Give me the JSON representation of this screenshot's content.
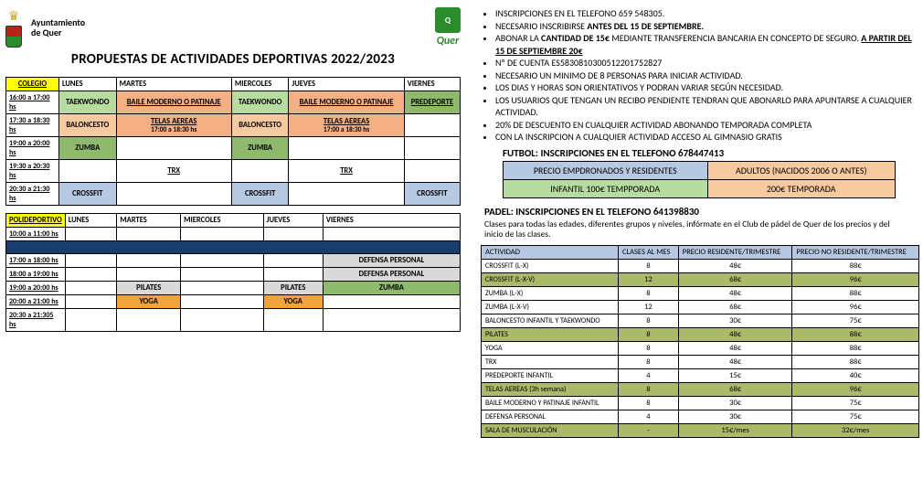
{
  "header": {
    "ayto1": "Ayuntamiento",
    "ayto2": "de Quer",
    "brand": "Quer",
    "title": "PROPUESTAS DE ACTIVIDADES DEPORTIVAS 2022/2023"
  },
  "colors": {
    "yellow": "#ffff00",
    "lgreen": "#b7dca0",
    "dgreen": "#8fb96d",
    "salmon": "#f2b084",
    "lblue": "#b7c9e2",
    "peach": "#f7c99e",
    "grey": "#d9d9d9",
    "orange": "#f2a43a",
    "navy": "#1a3d6b",
    "priceBlue": "#b7c9e2",
    "olive": "#aab96a"
  },
  "days": [
    "LUNES",
    "MARTES",
    "MIERCOLES",
    "JUEVES",
    "VIERNES"
  ],
  "sched1": {
    "label": "COLEGIO",
    "rows": [
      {
        "time": "16:00 a 17:00 hs",
        "cells": [
          {
            "t": "TAEKWONDO",
            "c": "#b7dca0"
          },
          {
            "t": "BAILE MODERNO O PATINAJE",
            "c": "#f2b084",
            "u": true
          },
          {
            "t": "TAEKWONDO",
            "c": "#b7dca0"
          },
          {
            "t": "BAILE MODERNO O PATINAJE",
            "c": "#f2b084",
            "u": true
          },
          {
            "t": "PREDEPORTE",
            "c": "#8fb96d",
            "u": true
          }
        ]
      },
      {
        "time": "17:30 a 18:30 hs",
        "cells": [
          {
            "t": "BALONCESTO",
            "c": "#f7c99e"
          },
          {
            "t": "TELAS AEREAS",
            "sub": "17:00 a 18:30 hs",
            "c": "#f2b084",
            "u": true
          },
          {
            "t": "BALONCESTO",
            "c": "#f7c99e"
          },
          {
            "t": "TELAS AEREAS",
            "sub": "17:00 a 18:30 hs",
            "c": "#f2b084",
            "u": true
          },
          {
            "t": "",
            "c": "#ffffff"
          }
        ]
      },
      {
        "time": "19:00 a 20:00 hs",
        "cells": [
          {
            "t": "ZUMBA",
            "c": "#8fb96d"
          },
          {
            "t": "",
            "c": "#ffffff"
          },
          {
            "t": "ZUMBA",
            "c": "#8fb96d"
          },
          {
            "t": "",
            "c": "#ffffff"
          },
          {
            "t": "",
            "c": "#ffffff"
          }
        ]
      },
      {
        "time": "19:30 a 20:30 hs",
        "cells": [
          {
            "t": "",
            "c": "#ffffff"
          },
          {
            "t": "TRX",
            "c": "#ffffff",
            "u": true
          },
          {
            "t": "",
            "c": "#ffffff"
          },
          {
            "t": "TRX",
            "c": "#ffffff",
            "u": true
          },
          {
            "t": "",
            "c": "#ffffff"
          }
        ]
      },
      {
        "time": "20:30 a 21:30 hs",
        "cells": [
          {
            "t": "CROSSFIT",
            "c": "#b7c9e2"
          },
          {
            "t": "",
            "c": "#ffffff"
          },
          {
            "t": "CROSSFIT",
            "c": "#b7c9e2"
          },
          {
            "t": "",
            "c": "#ffffff"
          },
          {
            "t": "CROSSFIT",
            "c": "#b7c9e2"
          }
        ]
      }
    ]
  },
  "sched2": {
    "label": "POLIDEPORTIVO",
    "rows": [
      {
        "time": "10:00 a 11:00 hs",
        "cells": [
          {
            "t": ""
          },
          {
            "t": ""
          },
          {
            "t": ""
          },
          {
            "t": ""
          },
          {
            "t": ""
          }
        ]
      },
      {
        "time": "",
        "navy": true,
        "cells": [
          {
            "t": ""
          },
          {
            "t": ""
          },
          {
            "t": ""
          },
          {
            "t": ""
          },
          {
            "t": ""
          }
        ]
      },
      {
        "time": "17:00 a 18:00 hs",
        "cells": [
          {
            "t": ""
          },
          {
            "t": ""
          },
          {
            "t": ""
          },
          {
            "t": ""
          },
          {
            "t": "DEFENSA PERSONAL",
            "c": "#d9d9d9"
          }
        ]
      },
      {
        "time": "18:00 a 19:00 hs",
        "cells": [
          {
            "t": ""
          },
          {
            "t": ""
          },
          {
            "t": ""
          },
          {
            "t": ""
          },
          {
            "t": "DEFENSA PERSONAL",
            "c": "#d9d9d9"
          }
        ]
      },
      {
        "time": "19:00 a 20:00 hs",
        "cells": [
          {
            "t": ""
          },
          {
            "t": "PILATES",
            "c": "#d9d9d9"
          },
          {
            "t": ""
          },
          {
            "t": "PILATES",
            "c": "#d9d9d9"
          },
          {
            "t": "ZUMBA",
            "c": "#8fb96d"
          }
        ]
      },
      {
        "time": "20:00 a 21:00 hs",
        "cells": [
          {
            "t": ""
          },
          {
            "t": "YOGA",
            "c": "#f2a43a"
          },
          {
            "t": ""
          },
          {
            "t": "YOGA",
            "c": "#f2a43a"
          },
          {
            "t": ""
          }
        ]
      },
      {
        "time": "20:30 a 21:305 hs",
        "cells": [
          {
            "t": ""
          },
          {
            "t": ""
          },
          {
            "t": ""
          },
          {
            "t": ""
          },
          {
            "t": ""
          }
        ]
      }
    ]
  },
  "info": [
    [
      {
        "t": "INSCRIPCIONES EN EL TELEFONO 659 548305."
      }
    ],
    [
      {
        "t": "NECESARIO INSCRIBIRSE "
      },
      {
        "t": "ANTES DEL 15 DE SEPTIEMBRE.",
        "b": true
      }
    ],
    [
      {
        "t": "ABONAR LA "
      },
      {
        "t": "CANTIDAD DE 15€",
        "b": true
      },
      {
        "t": " MEDIANTE TRANSFERENCIA BANCARIA EN CONCEPTO DE SEGURO. "
      },
      {
        "t": "A PARTIR DEL 15 DE SEPTIEMBRE 20€",
        "b": true,
        "u": true
      }
    ],
    [
      {
        "t": "Nº DE CUENTA ES5830810300512201752827"
      }
    ],
    [
      {
        "t": "NECESARIO UN MINIMO DE 8 PERSONAS PARA INICIAR ACTIVIDAD."
      }
    ],
    [
      {
        "t": "LOS DIAS Y HORAS SON ORIENTATIVOS Y PODRAN VARIAR SEGÚN NECESIDAD."
      }
    ],
    [
      {
        "t": "LOS USUARIOS QUE TENGAN UN RECIBO PENDIENTE TENDRAN QUE ABONARLO PARA APUNTARSE A CUALQUIER ACTIVIDAD."
      }
    ],
    [
      {
        "t": "20% DE DESCUENTO EN CUALQUIER ACTIVIDAD ABONANDO TEMPORADA COMPLETA"
      }
    ],
    [
      {
        "t": "CON LA INSCRIPCION A CUALQUIER ACTIVIDAD ACCESO AL GIMNASIO GRATIS"
      }
    ]
  ],
  "futbol": {
    "title": "FUTBOL:  INSCRIPCIONES EN EL TELEFONO 678447413",
    "h1": "PRECIO EMPDRONADOS Y RESIDENTES",
    "h2": "ADULTOS (NACIDOS 2006 O ANTES)",
    "r1": "INFANTIL 100€ TEMPPORADA",
    "r2": "200€ TEMPORADA",
    "c1": "#b7c9e2",
    "c2": "#f7c99e",
    "c3": "#b7dca0",
    "c4": "#f7c99e"
  },
  "padel": {
    "title": "PADEL: INSCRIPCIONES EN EL TELEFONO 641398830",
    "sub": "Clases para todas las edades, diferentes grupos y niveles, infórmate en el Club de pádel de Quer de los precios y del inicio de las clases."
  },
  "prices": {
    "headers": [
      "ACTIVIDAD",
      "CLASES AL MES",
      "PRECIO RESIDENTE/TRIMESTRE",
      "PRECIO NO RESIDENTE/TRIMESTRE"
    ],
    "rows": [
      {
        "a": "CROSSFIT (L-X)",
        "n": "8",
        "p1": "48€",
        "p2": "88€"
      },
      {
        "a": "CROSSFIT (L-X-V)",
        "n": "12",
        "p1": "68€",
        "p2": "96€",
        "hl": "#aab96a"
      },
      {
        "a": "ZUMBA (L-X)",
        "n": "8",
        "p1": "48€",
        "p2": "88€"
      },
      {
        "a": "ZUMBA (L-X-V)",
        "n": "12",
        "p1": "68€",
        "p2": "96€"
      },
      {
        "a": "BALONCESTO INFANTIL Y TAEKWONDO",
        "n": "8",
        "p1": "30€",
        "p2": "75€"
      },
      {
        "a": "PILATES",
        "n": "8",
        "p1": "48€",
        "p2": "88€",
        "hl": "#aab96a"
      },
      {
        "a": "YOGA",
        "n": "8",
        "p1": "48€",
        "p2": "88€"
      },
      {
        "a": "TRX",
        "n": "8",
        "p1": "48€",
        "p2": "88€"
      },
      {
        "a": "PREDEPORTE INFANTIL",
        "n": "4",
        "p1": "15€",
        "p2": "40€"
      },
      {
        "a": "TELAS AEREAS (3h semana)",
        "n": "8",
        "p1": "68€",
        "p2": "96€",
        "hl": "#aab96a"
      },
      {
        "a": "BAILE MODERNO Y PATINAJE INFANTIL",
        "n": "8",
        "p1": "30€",
        "p2": "75€"
      },
      {
        "a": "DEFENSA PERSONAL",
        "n": "4",
        "p1": "30€",
        "p2": "75€"
      },
      {
        "a": "SALA DE MUSCULACIÓN",
        "n": "-",
        "p1": "15€/mes",
        "p2": "32€/mes",
        "hl": "#aab96a"
      }
    ]
  }
}
